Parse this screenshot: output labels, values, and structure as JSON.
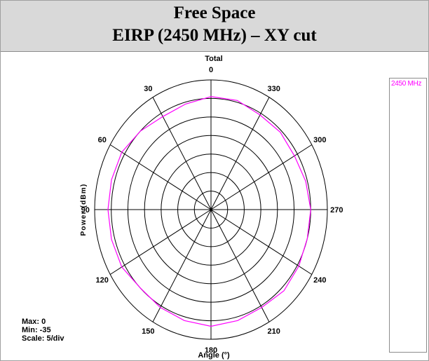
{
  "header": {
    "title": "Free Space",
    "subtitle": "EIRP (2450 MHz) – XY cut"
  },
  "chart_data": {
    "type": "polar",
    "title": "Total",
    "radial_label": "Power (dBm)",
    "angular_label": "Angle (°)",
    "angle_ticks": [
      "0",
      "330",
      "300",
      "270",
      "240",
      "210",
      "180",
      "150",
      "120",
      "90",
      "60",
      "30"
    ],
    "angle_tick_values": [
      0,
      330,
      300,
      270,
      240,
      210,
      180,
      150,
      120,
      90,
      60,
      30
    ],
    "rlim": [
      -35,
      0
    ],
    "r_scale_per_div": 5,
    "grid": true,
    "legend_position": "right",
    "series": [
      {
        "name": "2450 MHz",
        "color": "#ff00ff",
        "angles": [
          0,
          15,
          30,
          45,
          60,
          75,
          90,
          105,
          120,
          135,
          150,
          165,
          180,
          195,
          210,
          225,
          240,
          255,
          270,
          285,
          300,
          315,
          330,
          345
        ],
        "values": [
          -4.5,
          -5.5,
          -6,
          -5,
          -4,
          -4,
          -4,
          -4,
          -4,
          -5,
          -4.5,
          -4,
          -3.5,
          -4,
          -4.5,
          -4,
          -4.5,
          -5,
          -5,
          -5.5,
          -6,
          -5.5,
          -5.5,
          -4.5
        ]
      }
    ],
    "stats": {
      "max": "Max: 0",
      "min": "Min: -35",
      "scale": "Scale: 5/div"
    }
  },
  "colors": {
    "header_bg": "#d9d9d9",
    "trace": "#ff00ff",
    "grid": "#000000"
  }
}
